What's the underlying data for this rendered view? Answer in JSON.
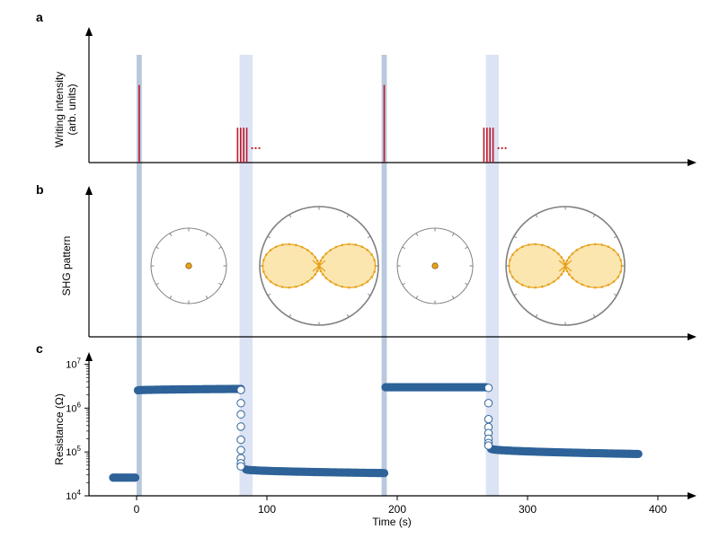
{
  "chart_data": [
    {
      "type": "bar",
      "panel_label": "a",
      "ylabel_line1": "Writing intensity",
      "ylabel_line2": "(arb. units)",
      "pulses": [
        {
          "x": 2,
          "height": 0.6,
          "count": 1,
          "trailing_dots": false
        },
        {
          "x": 81,
          "height": 0.27,
          "count": 4,
          "trailing_dots": true
        },
        {
          "x": 190,
          "height": 0.6,
          "count": 1,
          "trailing_dots": false
        },
        {
          "x": 270,
          "height": 0.27,
          "count": 4,
          "trailing_dots": true
        }
      ],
      "pulse_color": "#c0182a"
    },
    {
      "type": "polar",
      "panel_label": "b",
      "ylabel": "SHG pattern",
      "patterns": [
        {
          "x": 40,
          "shape": "dot"
        },
        {
          "x": 140,
          "shape": "two-lobe"
        },
        {
          "x": 229,
          "shape": "dot"
        },
        {
          "x": 329,
          "shape": "two-lobe"
        }
      ],
      "pattern_color": "#e7a21c",
      "pattern_fill": "#fbe6b0"
    },
    {
      "type": "scatter",
      "panel_label": "c",
      "xlabel": "Time (s)",
      "ylabel": "Resistance (Ω)",
      "yscale": "log",
      "xlim": [
        -25,
        420
      ],
      "ylim": [
        10000,
        15000000
      ],
      "xticks": [
        0,
        100,
        200,
        300,
        400
      ],
      "yticks": [
        {
          "base": "10",
          "exp": "4",
          "value": 10000
        },
        {
          "base": "10",
          "exp": "5",
          "value": 100000
        },
        {
          "base": "10",
          "exp": "6",
          "value": 1000000
        },
        {
          "base": "10",
          "exp": "7",
          "value": 10000000
        }
      ],
      "marker_color": "#2e6399",
      "segments": [
        {
          "x_start": -18,
          "x_end": -1,
          "y_start": 26000,
          "y_end": 26000
        },
        {
          "x_start": 1,
          "x_end": 80,
          "y_start": 2550000,
          "y_end": 2750000
        },
        {
          "x_start": 84,
          "x_end": 190,
          "y_start": 40000,
          "y_end": 33000
        },
        {
          "x_start": 191,
          "x_end": 268,
          "y_start": 3000000,
          "y_end": 3000000
        },
        {
          "x_start": 272,
          "x_end": 385,
          "y_start": 118000,
          "y_end": 90000
        }
      ],
      "transitions": [
        {
          "x": 80,
          "y_values": [
            2600000,
            1300000,
            720000,
            380000,
            190000,
            110000,
            72000,
            55000,
            47000
          ]
        },
        {
          "x": 270,
          "y_values": [
            2900000,
            1300000,
            560000,
            370000,
            270000,
            200000,
            160000,
            140000
          ]
        }
      ]
    }
  ],
  "highlight_bands": [
    {
      "x_start": 0,
      "x_end": 4,
      "color": "#b9c9dd"
    },
    {
      "x_start": 79,
      "x_end": 89,
      "color": "#dce3f4"
    },
    {
      "x_start": 188,
      "x_end": 192,
      "color": "#b9c9dd"
    },
    {
      "x_start": 268,
      "x_end": 278,
      "color": "#dce3f4"
    }
  ]
}
